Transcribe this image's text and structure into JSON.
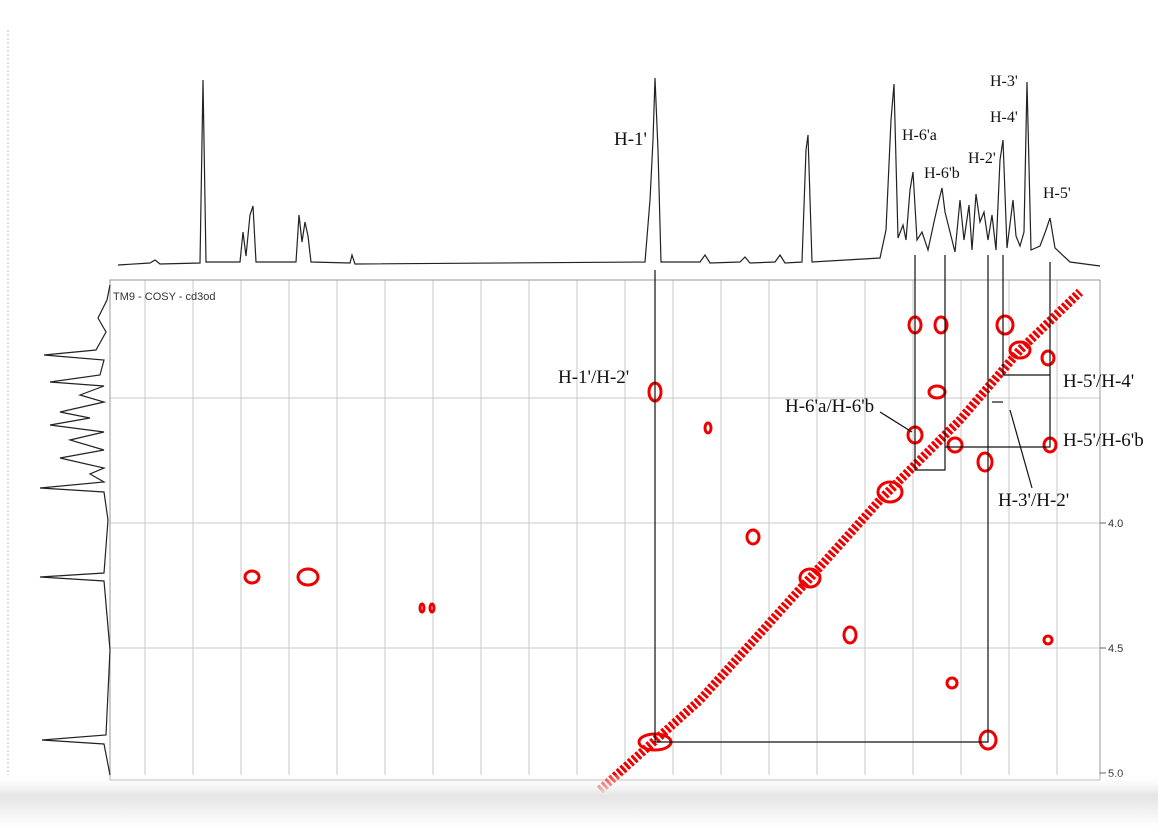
{
  "plot": {
    "title": "TM9 - COSY - cd3od",
    "y_tick_labels": [
      "4.0",
      "4.5",
      "5.0"
    ]
  },
  "peak_labels": [
    "H-1'",
    "H-6'a",
    "H-6'b",
    "H-2'",
    "H-3'",
    "H-4'",
    "H-5'"
  ],
  "cross_peak_labels": [
    "H-1'/H-2'",
    "H-6'a/H-6'b",
    "H-5'/H-4'",
    "H-5'/H-6'b",
    "H-3'/H-2'"
  ]
}
